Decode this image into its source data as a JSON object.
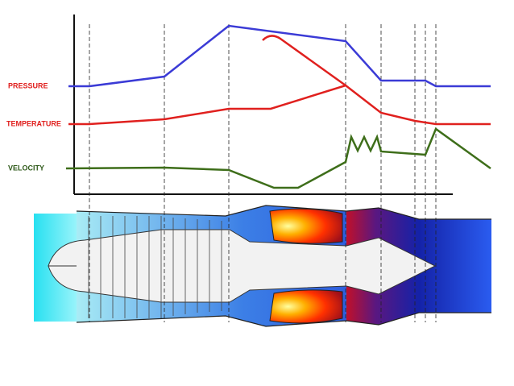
{
  "labels": {
    "pressure": "PRESSURE",
    "temperature": "TEMPERATURE",
    "velocity": "VELOCITY"
  }
}
